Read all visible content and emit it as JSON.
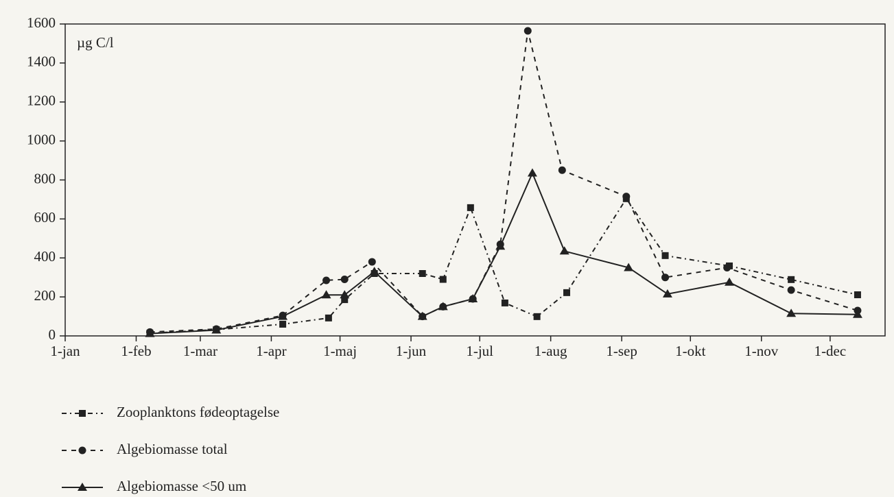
{
  "chart_data": {
    "type": "line",
    "y_label": "µg C/l",
    "xlim": [
      1,
      359
    ],
    "xticks": [
      {
        "value": 1,
        "label": "1-jan"
      },
      {
        "value": 32,
        "label": "1-feb"
      },
      {
        "value": 60,
        "label": "1-mar"
      },
      {
        "value": 91,
        "label": "1-apr"
      },
      {
        "value": 121,
        "label": "1-maj"
      },
      {
        "value": 152,
        "label": "1-jun"
      },
      {
        "value": 182,
        "label": "1-jul"
      },
      {
        "value": 213,
        "label": "1-aug"
      },
      {
        "value": 244,
        "label": "1-sep"
      },
      {
        "value": 274,
        "label": "1-okt"
      },
      {
        "value": 305,
        "label": "1-nov"
      },
      {
        "value": 335,
        "label": "1-dec"
      }
    ],
    "ylim": [
      0,
      1600
    ],
    "yticks": [
      0,
      200,
      400,
      600,
      800,
      1000,
      1200,
      1400,
      1600
    ],
    "legend": "bottom-left",
    "series": [
      {
        "name": "Zooplanktons fødeoptagelse",
        "color": "#222222",
        "line_style": "dashdot",
        "marker": "square",
        "x": [
          38,
          67,
          96,
          116,
          123,
          136,
          157,
          166,
          178,
          193,
          207,
          220,
          246,
          263,
          291,
          318,
          347
        ],
        "values": [
          14,
          32,
          60,
          92,
          186,
          320,
          320,
          290,
          658,
          169,
          99,
          222,
          704,
          412,
          359,
          289,
          211
        ]
      },
      {
        "name": "Algebiomasse total",
        "color": "#222222",
        "line_style": "dashed",
        "marker": "circle",
        "x": [
          38,
          67,
          96,
          115,
          123,
          135,
          157,
          166,
          179,
          191,
          203,
          218,
          246,
          263,
          290,
          318,
          347
        ],
        "values": [
          20,
          35,
          105,
          285,
          290,
          380,
          100,
          150,
          190,
          470,
          1565,
          850,
          715,
          300,
          350,
          235,
          130
        ]
      },
      {
        "name": "Algebiomasse <50 um",
        "color": "#222222",
        "line_style": "solid",
        "marker": "triangle",
        "x": [
          38,
          67,
          96,
          115,
          123,
          136,
          157,
          166,
          179,
          191,
          205,
          219,
          247,
          264,
          291,
          318,
          347
        ],
        "values": [
          12,
          30,
          100,
          210,
          210,
          330,
          100,
          150,
          190,
          460,
          835,
          435,
          350,
          215,
          275,
          115,
          110
        ]
      }
    ]
  }
}
